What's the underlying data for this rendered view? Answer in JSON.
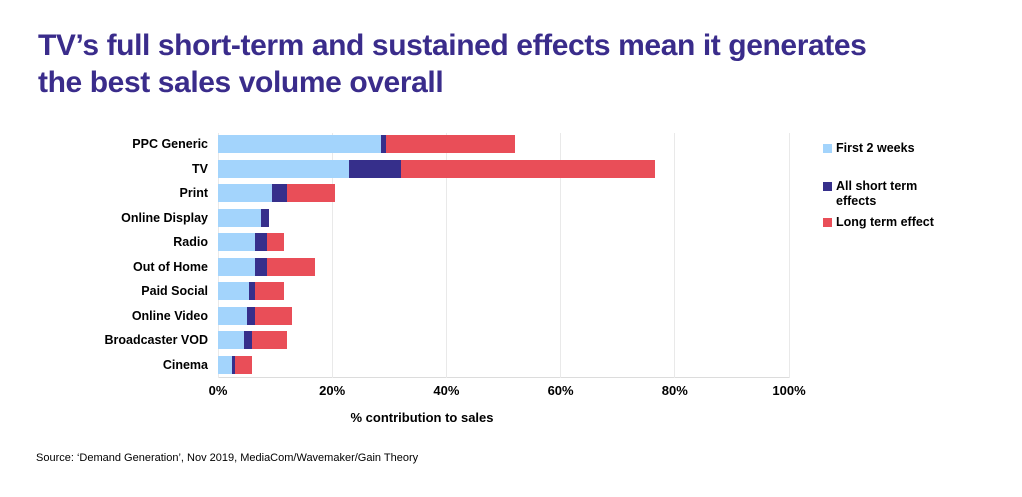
{
  "header": {
    "title_lines": [
      "TV’s full short-term and sustained effects mean it generates",
      "the best sales volume overall"
    ],
    "title_color": "#3A2C8B"
  },
  "chart_data": {
    "type": "bar",
    "orientation": "horizontal",
    "stacked": true,
    "title": "TV’s full short-term and sustained effects mean it generates the best sales volume overall",
    "xlabel": "% contribution to sales",
    "ylabel": "",
    "xlim": [
      0,
      100
    ],
    "grid": true,
    "legend_position": "right",
    "categories": [
      "PPC Generic",
      "TV",
      "Print",
      "Online Display",
      "Radio",
      "Out of Home",
      "Paid Social",
      "Online Video",
      "Broadcaster VOD",
      "Cinema"
    ],
    "series": [
      {
        "name": "First 2 weeks",
        "color": "#A3D4FC",
        "values": [
          28.5,
          23,
          9.5,
          7.5,
          6.5,
          6.5,
          5.5,
          5,
          4.5,
          2.5
        ]
      },
      {
        "name": "All short term effects",
        "color": "#362F8B",
        "values": [
          1,
          9,
          2.5,
          1.5,
          2,
          2,
          1,
          1.5,
          1.5,
          0.5
        ]
      },
      {
        "name": "Long term effect",
        "color": "#E94E58",
        "values": [
          22.5,
          44.5,
          8.5,
          0,
          3,
          8.5,
          5,
          6.5,
          6,
          3
        ]
      }
    ],
    "totals": [
      52,
      76.5,
      20.5,
      9,
      11.5,
      17,
      11.5,
      13,
      12,
      6
    ],
    "x_ticks": [
      {
        "label": "0%",
        "value": 0
      },
      {
        "label": "20%",
        "value": 20
      },
      {
        "label": "40%",
        "value": 40
      },
      {
        "label": "60%",
        "value": 60
      },
      {
        "label": "80%",
        "value": 80
      },
      {
        "label": "100%",
        "value": 100
      }
    ]
  },
  "legend": {
    "entries": [
      {
        "label": "First 2 weeks",
        "lines": [
          "First 2 weeks"
        ],
        "color": "#A3D4FC"
      },
      {
        "label": "All short term effects",
        "lines": [
          "All short term",
          "effects"
        ],
        "color": "#362F8B"
      },
      {
        "label": "Long term effect",
        "lines": [
          "Long term effect"
        ],
        "color": "#E94E58"
      }
    ]
  },
  "footer": {
    "source": "Source: ‘Demand Generation’, Nov 2019, MediaCom/Wavemaker/Gain Theory"
  },
  "colors": {
    "first_2_weeks": "#A3D4FC",
    "all_short_term_effects": "#362F8B",
    "long_term_effect": "#E94E58",
    "gridline": "#E9E9E9",
    "title": "#3A2C8B"
  }
}
